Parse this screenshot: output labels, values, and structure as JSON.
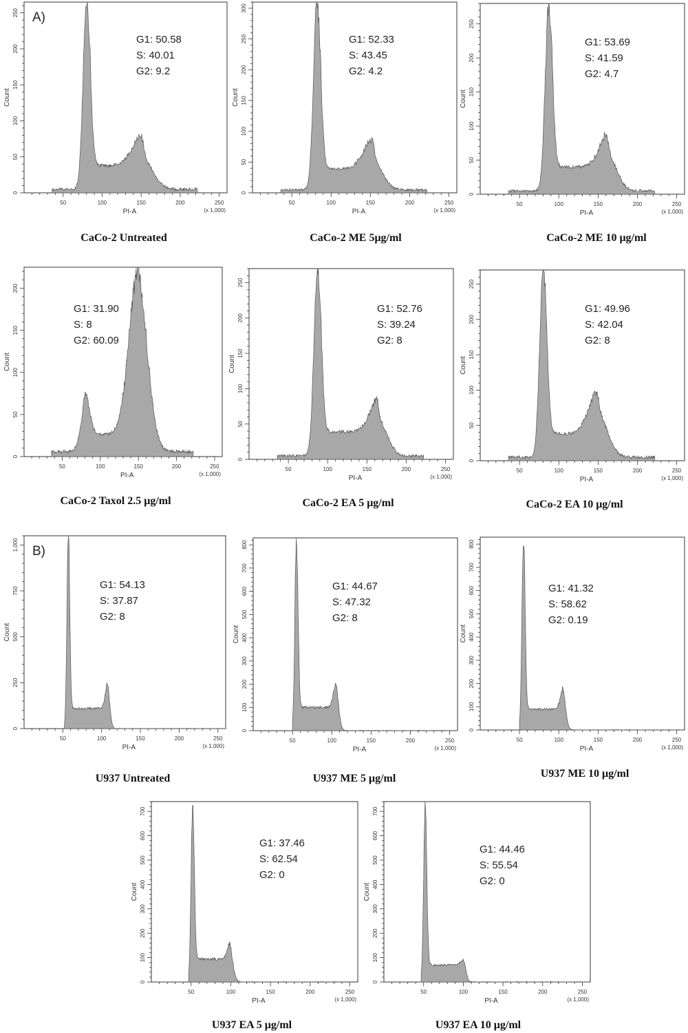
{
  "chart_data": [
    {
      "type": "area",
      "title": "CaCo-2 Untreated",
      "panel_label": "A)",
      "xlabel": "PI-A",
      "ylabel": "Count",
      "x_multiplier": "(x 1,000)",
      "xlim": [
        0,
        260
      ],
      "ylim": [
        0,
        265
      ],
      "xticks": [
        50,
        100,
        150,
        200,
        250
      ],
      "yticks": [
        0,
        50,
        100,
        150,
        200,
        250
      ],
      "stats": [
        "G1: 50.58",
        "S: 40.01",
        "G2: 9.2"
      ],
      "peaks": [
        {
          "x": 80,
          "h": 258,
          "w": 4.5
        },
        {
          "x": 152,
          "h": 42,
          "w": 13
        }
      ],
      "plateau": {
        "from": 85,
        "to": 150,
        "h": 33
      },
      "range": [
        36,
        222
      ],
      "baseline": 5
    },
    {
      "type": "area",
      "title": "CaCo-2 ME 5μg/ml",
      "panel_label": "",
      "xlabel": "PI-A",
      "ylabel": "Count",
      "x_multiplier": "(x 1,000)",
      "xlim": [
        0,
        260
      ],
      "ylim": [
        0,
        310
      ],
      "xticks": [
        50,
        100,
        150,
        200,
        250
      ],
      "yticks": [
        0,
        50,
        100,
        150,
        200,
        250,
        300
      ],
      "stats": [
        "G1: 52.33",
        "S: 43.45",
        "G2: 4.2"
      ],
      "peaks": [
        {
          "x": 82,
          "h": 300,
          "w": 4.5
        },
        {
          "x": 153,
          "h": 47,
          "w": 12
        }
      ],
      "plateau": {
        "from": 87,
        "to": 152,
        "h": 34
      },
      "range": [
        36,
        222
      ],
      "baseline": 5
    },
    {
      "type": "area",
      "title": "CaCo-2 ME 10 μg/ml",
      "panel_label": "",
      "xlabel": "PI-A",
      "ylabel": "Count",
      "x_multiplier": "(x 1,000)",
      "xlim": [
        0,
        260
      ],
      "ylim": [
        0,
        280
      ],
      "xticks": [
        50,
        100,
        150,
        200,
        250
      ],
      "yticks": [
        0,
        50,
        100,
        150,
        200,
        250
      ],
      "stats": [
        "G1: 53.69",
        "S: 41.59",
        "G2: 4.7"
      ],
      "peaks": [
        {
          "x": 87,
          "h": 268,
          "w": 4.5
        },
        {
          "x": 163,
          "h": 50,
          "w": 11
        }
      ],
      "plateau": {
        "from": 92,
        "to": 160,
        "h": 35
      },
      "range": [
        36,
        222
      ],
      "baseline": 5
    },
    {
      "type": "area",
      "title": "CaCo-2 Taxol 2.5 μg/ml",
      "panel_label": "",
      "xlabel": "PI-A",
      "ylabel": "Count",
      "x_multiplier": "(x 1,000)",
      "xlim": [
        0,
        260
      ],
      "ylim": [
        0,
        225
      ],
      "xticks": [
        50,
        100,
        150,
        200,
        250
      ],
      "yticks": [
        0,
        50,
        100,
        150,
        200
      ],
      "stats": [
        "G1: 31.90",
        "S: 8",
        "G2: 60.09"
      ],
      "peaks": [
        {
          "x": 80,
          "h": 48,
          "w": 6
        },
        {
          "x": 150,
          "h": 195,
          "w": 12
        }
      ],
      "plateau": {
        "from": 80,
        "to": 150,
        "h": 20
      },
      "range": [
        36,
        222
      ],
      "baseline": 6
    },
    {
      "type": "area",
      "title": "CaCo-2 EA 5 μg/ml",
      "panel_label": "",
      "xlabel": "PI-A",
      "ylabel": "Count",
      "x_multiplier": "(x 1,000)",
      "xlim": [
        0,
        260
      ],
      "ylim": [
        0,
        270
      ],
      "xticks": [
        50,
        100,
        150,
        200,
        250
      ],
      "yticks": [
        0,
        50,
        100,
        150,
        200,
        250
      ],
      "stats": [
        "G1: 52.76",
        "S: 39.24",
        "G2: 8"
      ],
      "peaks": [
        {
          "x": 87,
          "h": 262,
          "w": 4.5
        },
        {
          "x": 165,
          "h": 48,
          "w": 11
        }
      ],
      "plateau": {
        "from": 92,
        "to": 162,
        "h": 34
      },
      "range": [
        36,
        222
      ],
      "baseline": 5
    },
    {
      "type": "area",
      "title": "CaCo-2 EA 10 μg/ml",
      "panel_label": "",
      "xlabel": "PI-A",
      "ylabel": "Count",
      "x_multiplier": "(x 1,000)",
      "xlim": [
        0,
        260
      ],
      "ylim": [
        0,
        270
      ],
      "xticks": [
        50,
        100,
        150,
        200,
        250
      ],
      "yticks": [
        0,
        50,
        100,
        150,
        200,
        250
      ],
      "stats": [
        "G1: 49.96",
        "S: 42.04",
        "G2: 8"
      ],
      "peaks": [
        {
          "x": 80,
          "h": 262,
          "w": 4.5
        },
        {
          "x": 150,
          "h": 60,
          "w": 12
        }
      ],
      "plateau": {
        "from": 85,
        "to": 148,
        "h": 33
      },
      "range": [
        36,
        222
      ],
      "baseline": 5
    },
    {
      "type": "area",
      "title": "U937 Untreated",
      "panel_label": "B)",
      "xlabel": "PI-A",
      "ylabel": "Count",
      "x_multiplier": "(x 1,000)",
      "xlim": [
        0,
        260
      ],
      "ylim": [
        0,
        1050
      ],
      "xticks": [
        50,
        100,
        150,
        200,
        250
      ],
      "yticks": [
        0,
        250,
        500,
        750,
        1000
      ],
      "y_tick_labels": [
        "0",
        "250",
        "500",
        "750",
        "1,000"
      ],
      "stats": [
        "G1: 54.13",
        "S: 37.87",
        "G2: 8"
      ],
      "peaks": [
        {
          "x": 57,
          "h": 1030,
          "w": 1.8
        },
        {
          "x": 108,
          "h": 150,
          "w": 3
        }
      ],
      "plateau": {
        "from": 60,
        "to": 106,
        "h": 110
      },
      "range": [
        52,
        260
      ],
      "baseline": 0
    },
    {
      "type": "area",
      "title": "U937 ME 5 μg/ml",
      "panel_label": "",
      "xlabel": "PI-A",
      "ylabel": "Count",
      "x_multiplier": "(x 1,000)",
      "xlim": [
        0,
        260
      ],
      "ylim": [
        0,
        830
      ],
      "xticks": [
        50,
        100,
        150,
        200,
        250
      ],
      "yticks": [
        0,
        100,
        200,
        300,
        400,
        500,
        600,
        700,
        800
      ],
      "stats": [
        "G1: 44.67",
        "S: 47.32",
        "G2: 8"
      ],
      "peaks": [
        {
          "x": 55,
          "h": 810,
          "w": 2
        },
        {
          "x": 106,
          "h": 115,
          "w": 3.5
        }
      ],
      "plateau": {
        "from": 59,
        "to": 104,
        "h": 100
      },
      "range": [
        50,
        260
      ],
      "baseline": 0
    },
    {
      "type": "area",
      "title": "U937 ME 10 μg/ml",
      "panel_label": "",
      "xlabel": "PI-A",
      "ylabel": "Count",
      "x_multiplier": "(x 1,000)",
      "xlim": [
        0,
        260
      ],
      "ylim": [
        0,
        830
      ],
      "xticks": [
        50,
        100,
        150,
        200,
        250
      ],
      "yticks": [
        0,
        100,
        200,
        300,
        400,
        500,
        600,
        700,
        800
      ],
      "stats": [
        "G1: 41.32",
        "S: 58.62",
        "G2: 0.19"
      ],
      "peaks": [
        {
          "x": 55,
          "h": 810,
          "w": 2
        },
        {
          "x": 106,
          "h": 100,
          "w": 3.5
        }
      ],
      "plateau": {
        "from": 59,
        "to": 104,
        "h": 90
      },
      "range": [
        50,
        260
      ],
      "baseline": 0
    },
    {
      "type": "area",
      "title": "U937 EA 5 μg/ml",
      "panel_label": "",
      "xlabel": "PI-A",
      "ylabel": "Count",
      "x_multiplier": "(x 1,000)",
      "xlim": [
        0,
        260
      ],
      "ylim": [
        0,
        740
      ],
      "xticks": [
        50,
        100,
        150,
        200,
        250
      ],
      "yticks": [
        0,
        100,
        200,
        300,
        400,
        500,
        600,
        700
      ],
      "stats": [
        "G1: 37.46",
        "S: 62.54",
        "G2: 0"
      ],
      "peaks": [
        {
          "x": 52,
          "h": 720,
          "w": 2
        },
        {
          "x": 100,
          "h": 70,
          "w": 4
        }
      ],
      "plateau": {
        "from": 56,
        "to": 98,
        "h": 95
      },
      "range": [
        47,
        260
      ],
      "baseline": 0
    },
    {
      "type": "area",
      "title": "U937 EA 10 μg/ml",
      "panel_label": "",
      "xlabel": "PI-A",
      "ylabel": "Count",
      "x_multiplier": "(x 1,000)",
      "xlim": [
        0,
        260
      ],
      "ylim": [
        0,
        740
      ],
      "xticks": [
        50,
        100,
        150,
        200,
        250
      ],
      "yticks": [
        0,
        100,
        200,
        300,
        400,
        500,
        600,
        700
      ],
      "stats": [
        "G1: 44.46",
        "S: 55.54",
        "G2: 0"
      ],
      "peaks": [
        {
          "x": 52,
          "h": 700,
          "w": 2
        },
        {
          "x": 100,
          "h": 20,
          "w": 4
        }
      ],
      "plateau": {
        "from": 56,
        "to": 100,
        "h": 70
      },
      "range": [
        47,
        260
      ],
      "baseline": 0
    }
  ]
}
